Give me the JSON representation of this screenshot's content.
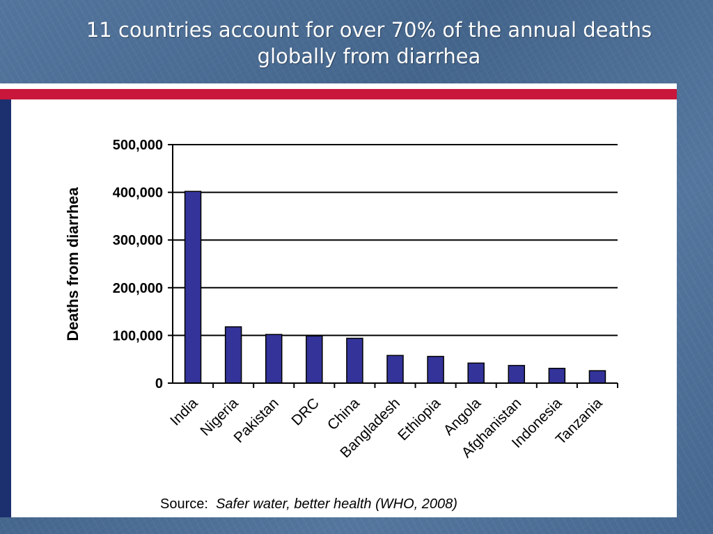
{
  "slide": {
    "title_line1": "11 countries account for over 70% of the annual deaths",
    "title_line2": "globally from diarrhea",
    "source_label": "Source:",
    "source_ref": "Safer water, better health (WHO, 2008)",
    "colors": {
      "accent_red": "#c8173a",
      "accent_navy": "#1c2f6e",
      "bar": "#33339a"
    }
  },
  "chart_data": {
    "type": "bar",
    "ylabel": "Deaths from diarrhea",
    "xlabel": "",
    "ylim": [
      0,
      500000
    ],
    "y_ticks": [
      0,
      100000,
      200000,
      300000,
      400000,
      500000
    ],
    "y_tick_labels": [
      "0",
      "100,000",
      "200,000",
      "300,000",
      "400,000",
      "500,000"
    ],
    "grid": true,
    "categories": [
      "India",
      "Nigeria",
      "Pakistan",
      "DRC",
      "China",
      "Bangladesh",
      "Ethiopia",
      "Angola",
      "Afghanistan",
      "Indonesia",
      "Tanzania"
    ],
    "values": [
      402000,
      118000,
      102000,
      99000,
      94000,
      58000,
      56000,
      42000,
      37000,
      31000,
      26000
    ]
  }
}
